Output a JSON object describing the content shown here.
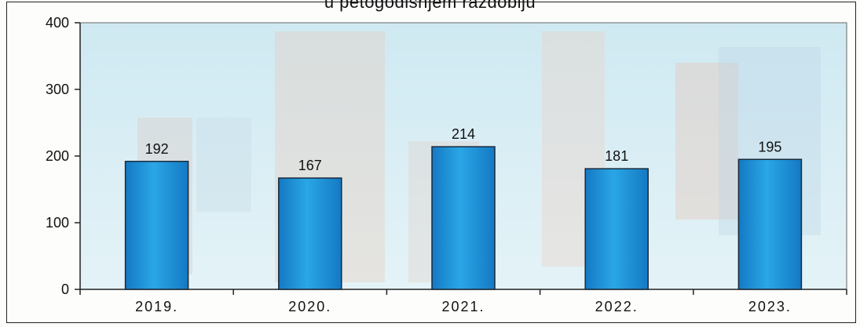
{
  "chart_data": {
    "type": "bar",
    "title": "u petogodišnjem razdoblju",
    "categories": [
      "2019.",
      "2020.",
      "2021.",
      "2022.",
      "2023."
    ],
    "values": [
      192,
      167,
      214,
      181,
      195
    ],
    "data_labels": [
      "192",
      "167",
      "214",
      "181",
      "195"
    ],
    "y_ticks": [
      "0",
      "100",
      "200",
      "300",
      "400"
    ],
    "ylim": [
      0,
      400
    ],
    "xlabel": "",
    "ylabel": "",
    "grid": false,
    "legend": "none",
    "colors": {
      "bar_top": "#2aa6e6",
      "bar_bottom": "#1479c3",
      "bar_edge": "#1a2a3a",
      "plot_bg": "#d7eef5"
    }
  }
}
